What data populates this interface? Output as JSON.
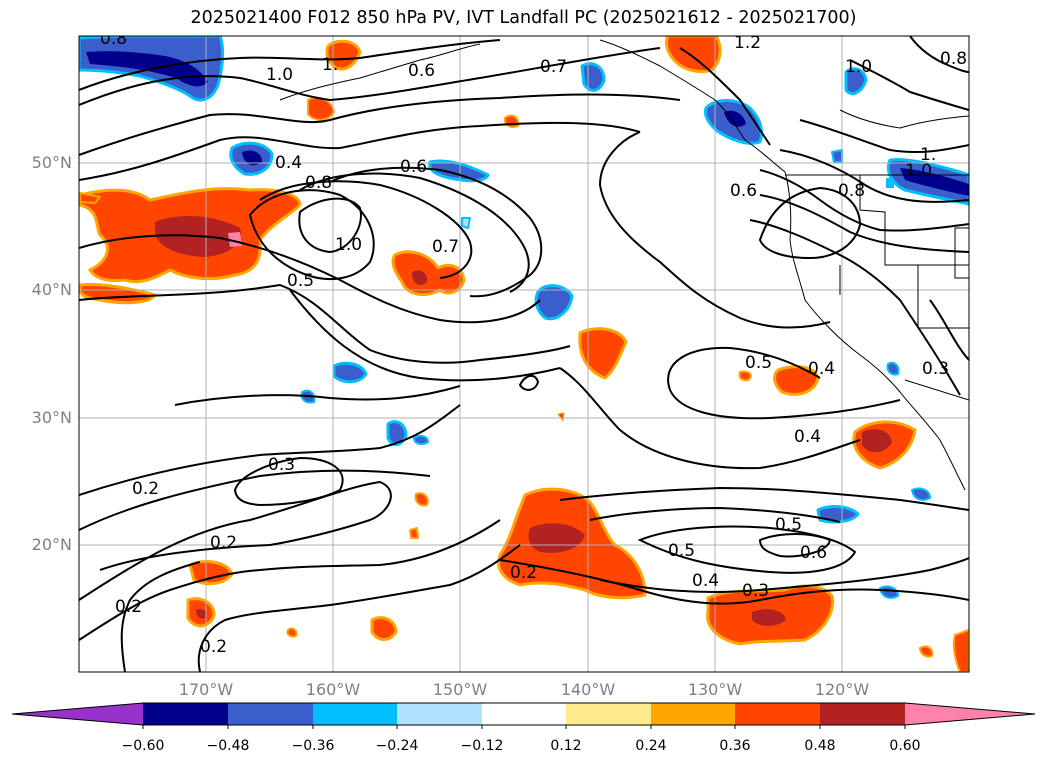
{
  "title": "2025021400 F012 850 hPa PV, IVT Landfall PC (2025021612 - 2025021700)",
  "lat_labels": [
    "50°N",
    "40°N",
    "30°N",
    "20°N"
  ],
  "lon_labels": [
    "170°W",
    "160°W",
    "150°W",
    "140°W",
    "130°W",
    "120°W"
  ],
  "contour_labels": [
    "0.8",
    "1.0",
    "1.",
    "0.6",
    "0.7",
    "1.2",
    "1.0",
    "0.8",
    "1.0",
    "0.4",
    "0.8",
    "0.6",
    "0.6",
    "1.0",
    "0.7",
    "0.5",
    "0.8",
    "1.",
    "0.5",
    "0.4",
    "0.3",
    "0.4",
    "0.3",
    "0.2",
    "0.2",
    "0.2",
    "0.2",
    "0.2",
    "0.5",
    "0.6",
    "0.5",
    "0.4",
    "0.3"
  ],
  "colorbar": {
    "colors": [
      "#9932cc",
      "#00008b",
      "#3a5fcd",
      "#00bfff",
      "#b0e2ff",
      "#ffffff",
      "#ffeb8c",
      "#ffa500",
      "#ff4500",
      "#b22222",
      "#ff82ab"
    ],
    "ticks": [
      "−0.60",
      "−0.48",
      "−0.36",
      "−0.24",
      "−0.12",
      "0.12",
      "0.24",
      "0.36",
      "0.48",
      "0.60"
    ]
  }
}
